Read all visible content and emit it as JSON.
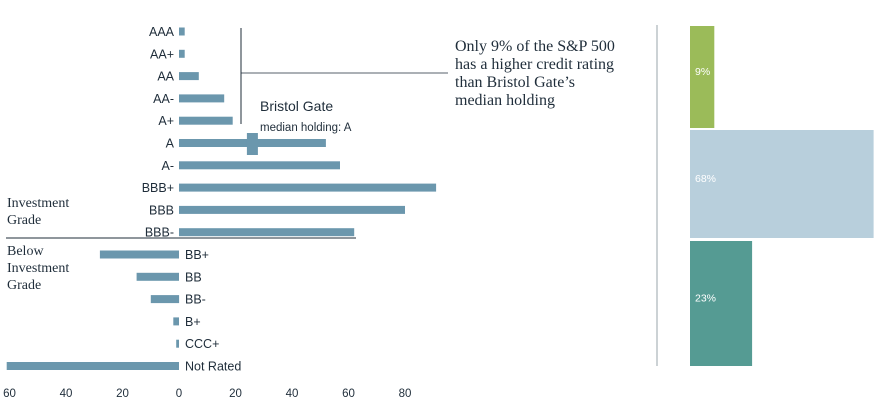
{
  "chart_data": [
    {
      "type": "bar",
      "orientation": "horizontal",
      "categories": [
        "AAA",
        "AA+",
        "AA",
        "AA-",
        "A+",
        "A",
        "A-",
        "BBB+",
        "BBB",
        "BBB-",
        "BB+",
        "BB",
        "BB-",
        "B+",
        "CCC+",
        "Not Rated"
      ],
      "values": [
        2,
        2,
        7,
        16,
        19,
        52,
        57,
        91,
        80,
        62,
        -28,
        -15,
        -10,
        -2,
        -1,
        -61
      ],
      "bar_color": "#6b97ad",
      "xlim": [
        -63,
        92
      ],
      "x_ticks": [
        "60",
        "40",
        "20",
        "0",
        "20",
        "40",
        "60",
        "80"
      ],
      "grade_labels": {
        "investment": [
          "Investment",
          "Grade"
        ],
        "below": [
          "Below",
          "Investment",
          "Grade"
        ]
      },
      "median_marker": {
        "value": 26,
        "category": "A",
        "title": "Bristol Gate",
        "subtitle": "median holding: A"
      },
      "annotation": [
        "Only 9% of the S&P 500",
        "has a higher credit rating",
        "than Bristol Gate’s",
        "median holding"
      ]
    },
    {
      "type": "bar",
      "orientation": "horizontal",
      "segments": [
        {
          "label": "9%",
          "value": 9,
          "color": "#9bbb59"
        },
        {
          "label": "68%",
          "value": 68,
          "color": "#b8cfdc"
        },
        {
          "label": "23%",
          "value": 23,
          "color": "#559b93"
        }
      ]
    }
  ]
}
